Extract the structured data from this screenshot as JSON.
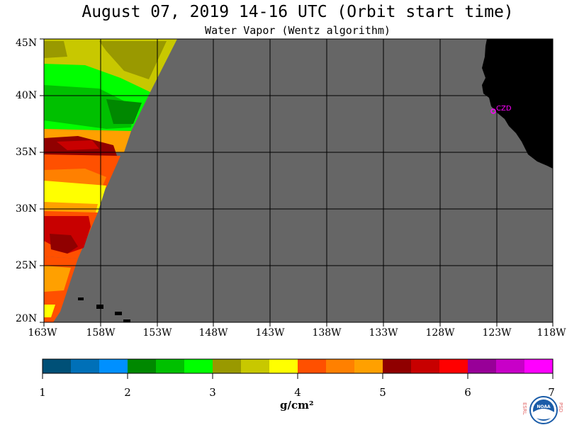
{
  "title": "August 07, 2019  14-16 UTC  (Orbit start time)",
  "subtitle": "Water Vapor (Wentz algorithm)",
  "lat_labels": [
    "45N",
    "40N",
    "35N",
    "30N",
    "25N",
    "20N"
  ],
  "lon_labels": [
    "163W",
    "158W",
    "153W",
    "148W",
    "143W",
    "138W",
    "133W",
    "128W",
    "123W",
    "118W"
  ],
  "colorbar": {
    "labels": [
      "1",
      "2",
      "3",
      "4",
      "5",
      "6",
      "7"
    ],
    "units": "g/cm²",
    "colors": [
      "#005077",
      "#0070b8",
      "#0090ff",
      "#008800",
      "#00c000",
      "#00ff00",
      "#999900",
      "#c8c800",
      "#ffff00",
      "#ff5000",
      "#ff8000",
      "#ffa000",
      "#900000",
      "#c80000",
      "#ff0000",
      "#980098",
      "#c800c8",
      "#ff00ff"
    ]
  },
  "map_colors": {
    "nodata": "#666666",
    "land": "#000000",
    "grid": "#000000"
  },
  "place_label": "CZD",
  "place_label_color": "#ff00ff",
  "logo": {
    "left_text": "ESRL",
    "right_text": "PSD",
    "center_text": "NOAA"
  }
}
